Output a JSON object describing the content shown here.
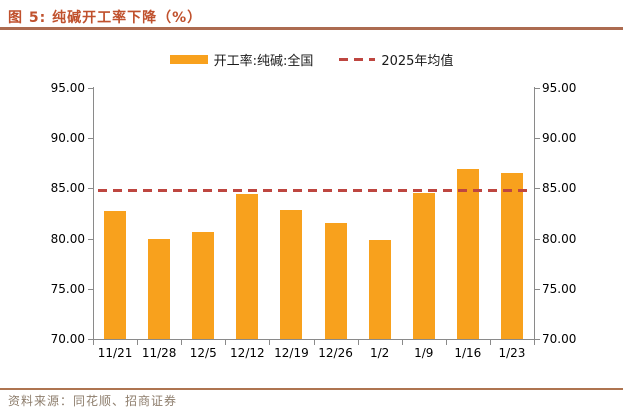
{
  "header": {
    "title": "图 5: 纯碱开工率下降（%）"
  },
  "legend": {
    "bar_label": "开工率:纯碱:全国",
    "line_label": "2025年均值"
  },
  "footer": {
    "source": "资料来源：同花顺、招商证券"
  },
  "colors": {
    "bar": "#F8A11D",
    "dash_line": "#BE4640",
    "title_text": "#C0512D",
    "top_rule": "#AC6B50",
    "bottom_rule": "#AE7450",
    "source_text": "#8D7D6C",
    "axis": "#8A8A8A",
    "tick_text": "#000000"
  },
  "chart_data": {
    "type": "bar",
    "title": "图 5: 纯碱开工率下降（%）",
    "categories": [
      "11/21",
      "11/28",
      "12/5",
      "12/12",
      "12/19",
      "12/26",
      "1/2",
      "1/9",
      "1/16",
      "1/23"
    ],
    "series": [
      {
        "name": "开工率:纯碱:全国",
        "type": "bar",
        "values": [
          82.7,
          80.0,
          80.7,
          84.4,
          82.8,
          81.6,
          79.9,
          84.5,
          86.9,
          86.5
        ]
      },
      {
        "name": "2025年均值",
        "type": "dashed_line",
        "value": 84.8
      }
    ],
    "ylim": [
      70,
      95
    ],
    "yticks": [
      70,
      75,
      80,
      85,
      90,
      95
    ],
    "ytick_labels": [
      "70.00",
      "75.00",
      "80.00",
      "85.00",
      "90.00",
      "95.00"
    ],
    "y_axis_sides": "both",
    "grid": false,
    "legend_position": "top",
    "xlabel": "",
    "ylabel": ""
  }
}
